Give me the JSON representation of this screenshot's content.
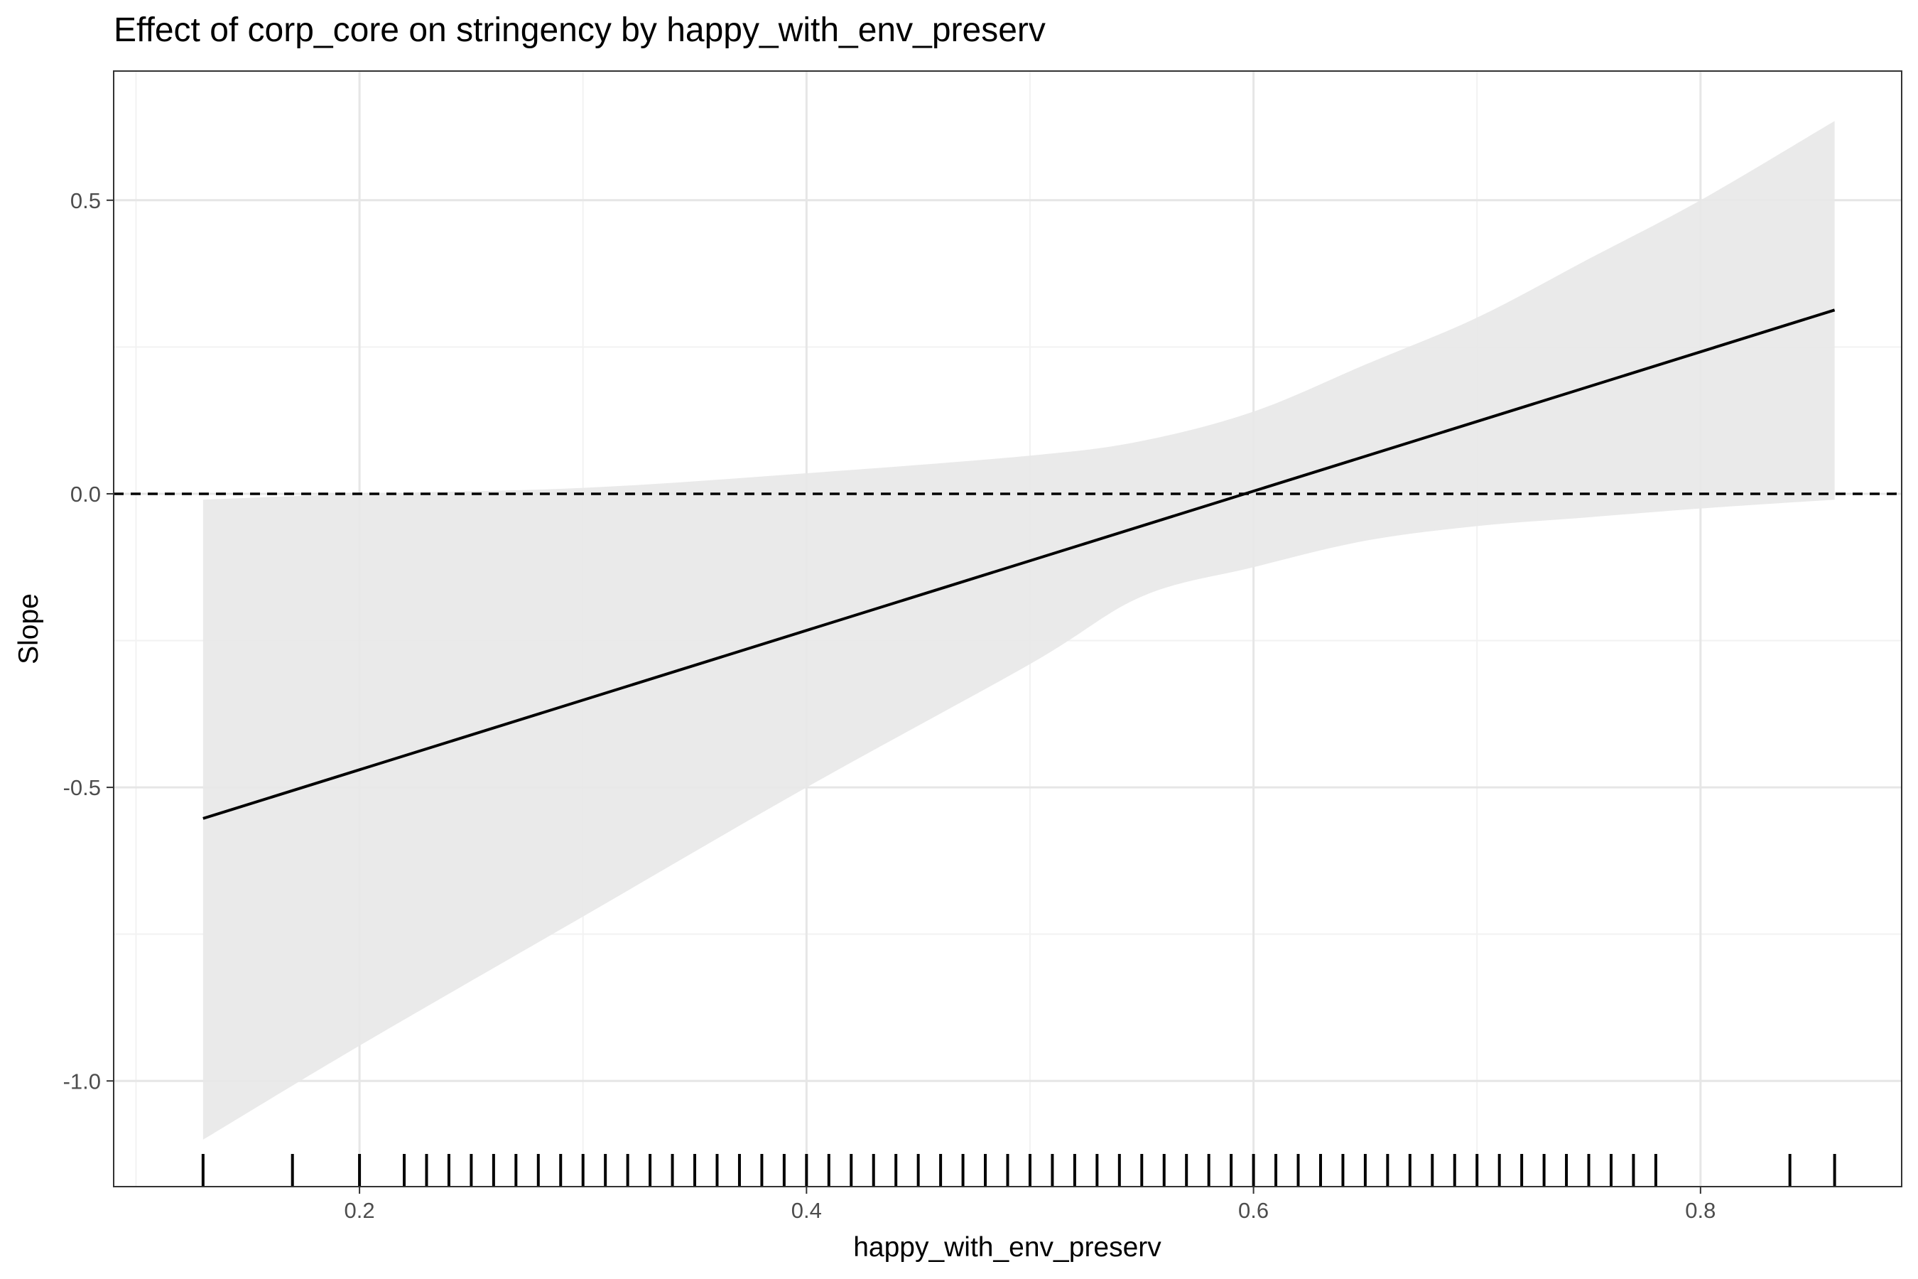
{
  "chart_data": {
    "type": "line",
    "title": "Effect of corp_core on stringency by happy_with_env_preserv",
    "xlabel": "happy_with_env_preserv",
    "ylabel": "Slope",
    "xlim": [
      0.09,
      0.89
    ],
    "ylim": [
      -1.18,
      0.72
    ],
    "x_ticks": [
      {
        "value": 0.2,
        "label": "0.2"
      },
      {
        "value": 0.4,
        "label": "0.4"
      },
      {
        "value": 0.6,
        "label": "0.6"
      },
      {
        "value": 0.8,
        "label": "0.8"
      }
    ],
    "y_ticks": [
      {
        "value": 0.5,
        "label": "0.5"
      },
      {
        "value": 0.0,
        "label": "0.0"
      },
      {
        "value": -0.5,
        "label": "-0.5"
      },
      {
        "value": -1.0,
        "label": "-1.0"
      }
    ],
    "grid": true,
    "reference_line": {
      "y": 0,
      "style": "dashed"
    },
    "series": [
      {
        "x": [
          0.13,
          0.86
        ],
        "y": [
          -0.553,
          0.313
        ]
      }
    ],
    "confidence_band": {
      "x": [
        0.13,
        0.2,
        0.3,
        0.4,
        0.5,
        0.55,
        0.6,
        0.65,
        0.7,
        0.75,
        0.8,
        0.86
      ],
      "lower": [
        -1.1,
        -0.94,
        -0.72,
        -0.5,
        -0.29,
        -0.175,
        -0.125,
        -0.08,
        -0.055,
        -0.04,
        -0.025,
        -0.01
      ],
      "upper": [
        -0.01,
        0.0,
        0.01,
        0.035,
        0.065,
        0.09,
        0.14,
        0.22,
        0.3,
        0.4,
        0.5,
        0.635
      ]
    },
    "rug_x": [
      0.13,
      0.17,
      0.2,
      0.22,
      0.23,
      0.24,
      0.25,
      0.26,
      0.27,
      0.28,
      0.29,
      0.3,
      0.31,
      0.32,
      0.33,
      0.34,
      0.35,
      0.36,
      0.37,
      0.38,
      0.39,
      0.4,
      0.41,
      0.42,
      0.43,
      0.44,
      0.45,
      0.46,
      0.47,
      0.48,
      0.49,
      0.5,
      0.51,
      0.52,
      0.53,
      0.54,
      0.55,
      0.56,
      0.57,
      0.58,
      0.59,
      0.6,
      0.61,
      0.62,
      0.63,
      0.64,
      0.65,
      0.66,
      0.67,
      0.68,
      0.69,
      0.7,
      0.71,
      0.72,
      0.73,
      0.74,
      0.75,
      0.76,
      0.77,
      0.78,
      0.84,
      0.86
    ],
    "colors": {
      "line": "#000000",
      "band": "#e8e8e8",
      "grid_major": "#e6e6e6",
      "grid_minor": "#f2f2f2",
      "panel_border": "#333333",
      "tick_label": "#4d4d4d"
    }
  }
}
